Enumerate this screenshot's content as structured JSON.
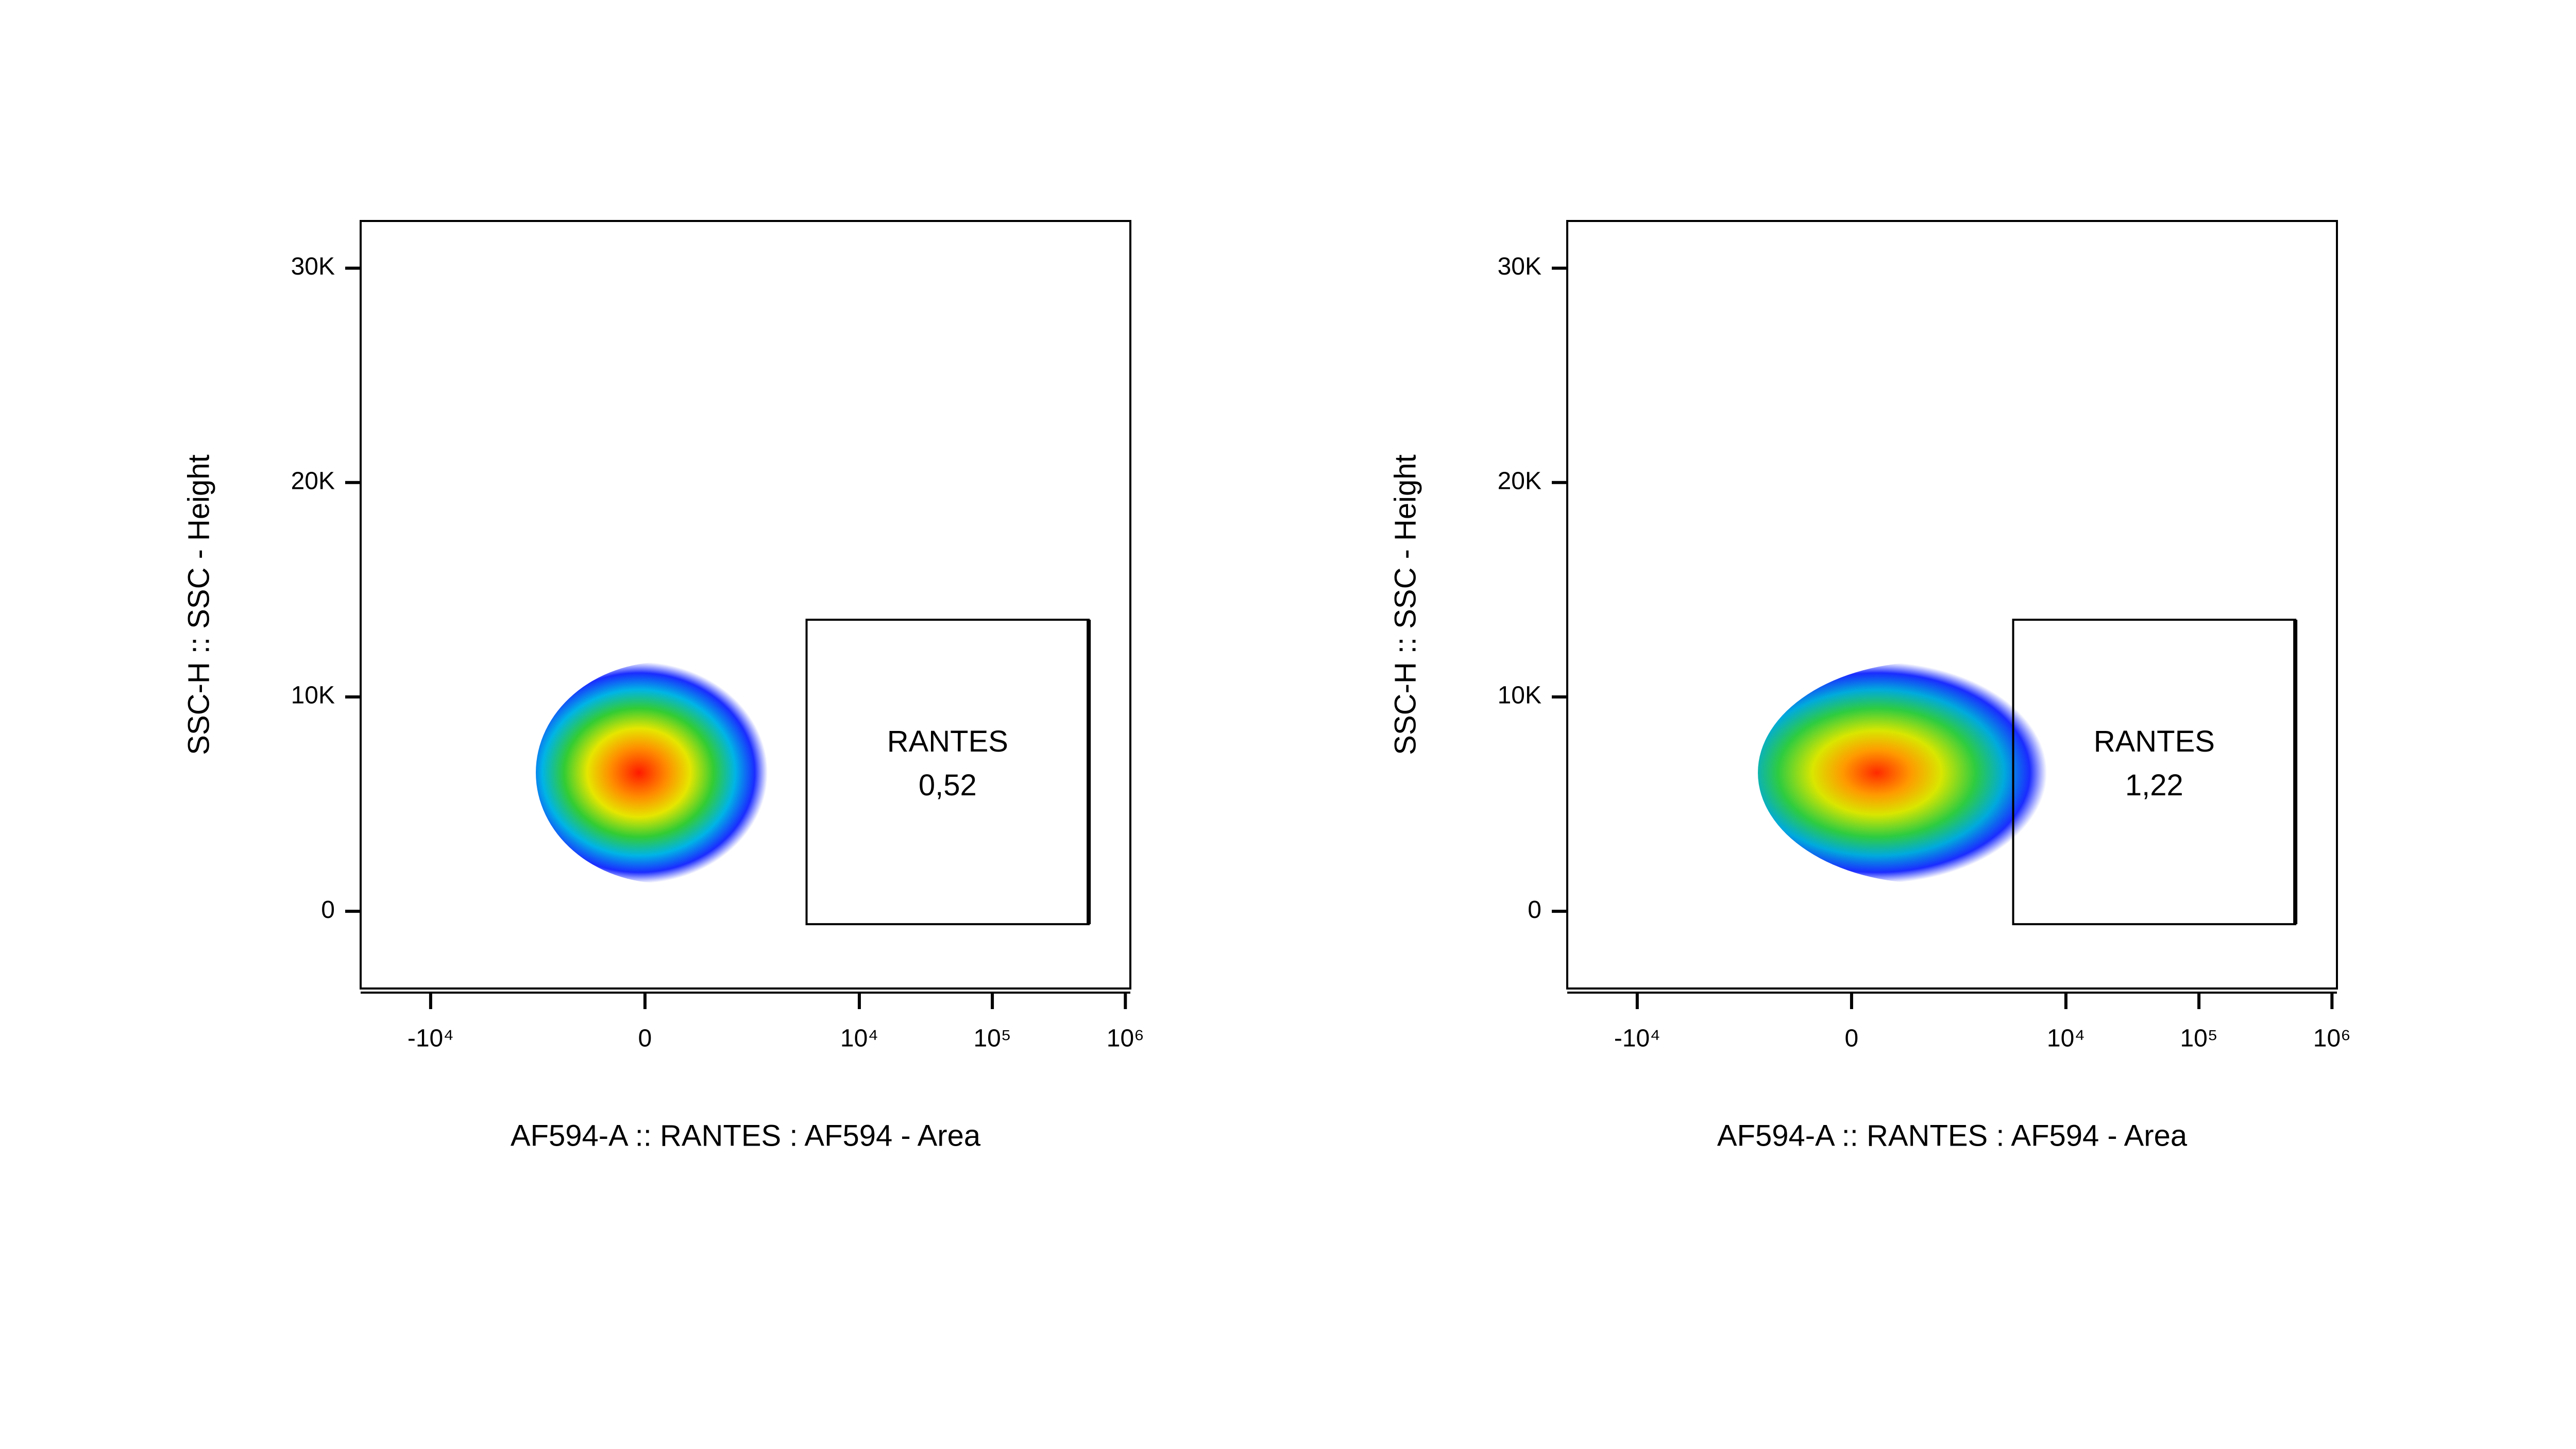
{
  "chart_data": [
    {
      "type": "scatter",
      "x_label": "AF594-A :: RANTES : AF594 - Area",
      "y_label": "SSC-H :: SSC - Height",
      "xscale": "biexponential",
      "xlim": [
        -33600,
        1090000
      ],
      "xticks": [
        {
          "value": -10000,
          "label": "-10⁴"
        },
        0,
        {
          "value": 10000,
          "label": "10⁴"
        },
        {
          "value": 100000,
          "label": "10⁵"
        },
        {
          "value": 1000000,
          "label": "10⁶"
        }
      ],
      "ylim": [
        -3600,
        32200
      ],
      "yticks": [
        0,
        {
          "value": 10000,
          "label": "10K"
        },
        {
          "value": 20000,
          "label": "20K"
        },
        {
          "value": 30000,
          "label": "30K"
        }
      ],
      "gate": {
        "name": "RANTES",
        "value": 0.52,
        "value_label": "0,52",
        "xlim": [
          4000,
          530000
        ],
        "ylim": [
          -600,
          13600
        ]
      }
    },
    {
      "type": "scatter",
      "x_label": "AF594-A :: RANTES : AF594 - Area",
      "y_label": "SSC-H :: SSC - Height",
      "xscale": "biexponential",
      "xlim": [
        -33600,
        1090000
      ],
      "xticks": [
        {
          "value": -10000,
          "label": "-10⁴"
        },
        0,
        {
          "value": 10000,
          "label": "10⁴"
        },
        {
          "value": 100000,
          "label": "10⁵"
        },
        {
          "value": 1000000,
          "label": "10⁶"
        }
      ],
      "ylim": [
        -3600,
        32200
      ],
      "yticks": [
        0,
        {
          "value": 10000,
          "label": "10K"
        },
        {
          "value": 20000,
          "label": "20K"
        },
        {
          "value": 30000,
          "label": "30K"
        }
      ],
      "gate": {
        "name": "RANTES",
        "value": 1.22,
        "value_label": "1,22",
        "xlim": [
          4000,
          530000
        ],
        "ylim": [
          -600,
          13600
        ]
      }
    }
  ]
}
